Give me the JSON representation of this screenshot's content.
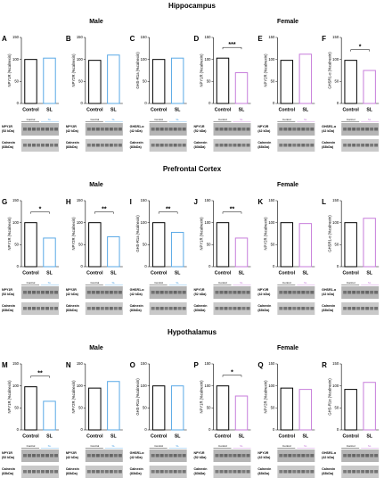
{
  "sections": [
    {
      "title": "Hippocampus",
      "groups": [
        "Male",
        "Female"
      ]
    },
    {
      "title": "Prefrontal Cortex",
      "groups": [
        "Male",
        "Female"
      ]
    },
    {
      "title": "Hypothalamus",
      "groups": [
        "Male",
        "Female"
      ]
    }
  ],
  "chart_data": [
    {
      "type": "bar",
      "label": "A",
      "ylabel": "NPY1R (%calnexin)",
      "categories": [
        "Control",
        "SL"
      ],
      "values": [
        100,
        103
      ],
      "colors": [
        "#000000",
        "#5aa9e6"
      ],
      "ylim": [
        0,
        150
      ],
      "yticks": [
        0,
        50,
        100,
        150
      ],
      "blots": [
        [
          "NPY1R",
          "(52 kDa)"
        ],
        [
          "Calnexin",
          "(83kDa)"
        ]
      ]
    },
    {
      "type": "bar",
      "label": "B",
      "ylabel": "NPY2R (%calnexin)",
      "categories": [
        "Control",
        "SL"
      ],
      "values": [
        98,
        110
      ],
      "colors": [
        "#000000",
        "#5aa9e6"
      ],
      "ylim": [
        0,
        150
      ],
      "yticks": [
        0,
        50,
        100,
        150
      ],
      "blots": [
        [
          "NPY2R",
          "(42 kDa)"
        ],
        [
          "Calnexin",
          "(83kDa)"
        ]
      ]
    },
    {
      "type": "bar",
      "label": "C",
      "ylabel": "GHS-R1a (%calnexin)",
      "categories": [
        "Control",
        "SL"
      ],
      "values": [
        100,
        103
      ],
      "colors": [
        "#000000",
        "#5aa9e6"
      ],
      "ylim": [
        0,
        150
      ],
      "yticks": [
        0,
        50,
        100,
        150
      ],
      "blots": [
        [
          "GHSR1-α",
          "(42 kDa)"
        ],
        [
          "Calnexin",
          "(83kDa)"
        ]
      ]
    },
    {
      "type": "bar",
      "label": "D",
      "ylabel": "NPY1R (%calnexin)",
      "categories": [
        "Control",
        "SL"
      ],
      "values": [
        103,
        70
      ],
      "colors": [
        "#000000",
        "#c77ddb"
      ],
      "ylim": [
        0,
        150
      ],
      "yticks": [
        0,
        50,
        100,
        150
      ],
      "annotation": "***",
      "blots": [
        [
          "NPY1R",
          "(52 kDa)"
        ],
        [
          "Calnexin",
          "(83kDa)"
        ]
      ]
    },
    {
      "type": "bar",
      "label": "E",
      "ylabel": "NPY2R (%calnexin)",
      "categories": [
        "Control",
        "SL"
      ],
      "values": [
        98,
        112
      ],
      "colors": [
        "#000000",
        "#c77ddb"
      ],
      "ylim": [
        0,
        150
      ],
      "yticks": [
        0,
        50,
        100,
        150
      ],
      "blots": [
        [
          "NPY2R",
          "(42 kDa)"
        ],
        [
          "Calnexin",
          "(83kDa)"
        ]
      ]
    },
    {
      "type": "bar",
      "label": "F",
      "ylabel": "GHSR1-α (%calnexin)",
      "categories": [
        "Control",
        "SL"
      ],
      "values": [
        98,
        75
      ],
      "colors": [
        "#000000",
        "#c77ddb"
      ],
      "ylim": [
        0,
        150
      ],
      "yticks": [
        0,
        50,
        100,
        150
      ],
      "annotation": "*",
      "blots": [
        [
          "GHSR1-α",
          "(42 kDa)"
        ],
        [
          "Calnexin",
          "(83kDa)"
        ]
      ]
    },
    {
      "type": "bar",
      "label": "G",
      "ylabel": "NPY1R (%calnexin)",
      "categories": [
        "Control",
        "SL"
      ],
      "values": [
        100,
        65
      ],
      "colors": [
        "#000000",
        "#5aa9e6"
      ],
      "ylim": [
        0,
        150
      ],
      "yticks": [
        0,
        50,
        100,
        150
      ],
      "annotation": "*",
      "blots": [
        [
          "NPY1R",
          "(52 kDa)"
        ],
        [
          "Calnexin",
          "(83kDa)"
        ]
      ]
    },
    {
      "type": "bar",
      "label": "H",
      "ylabel": "NPY2R (%calnexin)",
      "categories": [
        "Control",
        "SL"
      ],
      "values": [
        100,
        68
      ],
      "colors": [
        "#000000",
        "#5aa9e6"
      ],
      "ylim": [
        0,
        150
      ],
      "yticks": [
        0,
        50,
        100,
        150
      ],
      "annotation": "**",
      "blots": [
        [
          "NPY2R",
          "(42 kDa)"
        ],
        [
          "Calnexin",
          "(83kDa)"
        ]
      ]
    },
    {
      "type": "bar",
      "label": "I",
      "ylabel": "GHS-R1a (%calnexin)",
      "categories": [
        "Control",
        "SL"
      ],
      "values": [
        100,
        78
      ],
      "colors": [
        "#000000",
        "#5aa9e6"
      ],
      "ylim": [
        0,
        150
      ],
      "yticks": [
        0,
        50,
        100,
        150
      ],
      "annotation": "**",
      "blots": [
        [
          "GHSR1-α",
          "(42 kDa)"
        ],
        [
          "Calnexin",
          "(83kDa)"
        ]
      ]
    },
    {
      "type": "bar",
      "label": "J",
      "ylabel": "NPY1R (%calnexin)",
      "categories": [
        "Control",
        "SL"
      ],
      "values": [
        100,
        65
      ],
      "colors": [
        "#000000",
        "#c77ddb"
      ],
      "ylim": [
        0,
        150
      ],
      "yticks": [
        0,
        50,
        100,
        150
      ],
      "annotation": "**",
      "blots": [
        [
          "NPY1R",
          "(52 kDa)"
        ],
        [
          "Calnexin",
          "(83kDa)"
        ]
      ]
    },
    {
      "type": "bar",
      "label": "K",
      "ylabel": "NPY2R (%calnexin)",
      "categories": [
        "Control",
        "SL"
      ],
      "values": [
        100,
        98
      ],
      "colors": [
        "#000000",
        "#c77ddb"
      ],
      "ylim": [
        0,
        150
      ],
      "yticks": [
        0,
        50,
        100,
        150
      ],
      "blots": [
        [
          "NPY2R",
          "(42 kDa)"
        ],
        [
          "Calnexin",
          "(83kDa)"
        ]
      ]
    },
    {
      "type": "bar",
      "label": "L",
      "ylabel": "GHSR1-α (%calnexin)",
      "categories": [
        "Control",
        "SL"
      ],
      "values": [
        100,
        110
      ],
      "colors": [
        "#000000",
        "#c77ddb"
      ],
      "ylim": [
        0,
        150
      ],
      "yticks": [
        0,
        50,
        100,
        150
      ],
      "blots": [
        [
          "GHSR1-α",
          "(42 kDa)"
        ],
        [
          "Calnexin",
          "(83kDa)"
        ]
      ]
    },
    {
      "type": "bar",
      "label": "M",
      "ylabel": "NPY1R (%calnexin)",
      "categories": [
        "Control",
        "SL"
      ],
      "values": [
        98,
        65
      ],
      "colors": [
        "#000000",
        "#5aa9e6"
      ],
      "ylim": [
        0,
        150
      ],
      "yticks": [
        0,
        50,
        100,
        150
      ],
      "annotation": "**",
      "blots": [
        [
          "NPY1R",
          "(52 kDa)"
        ],
        [
          "Calnexin",
          "(83kDa)"
        ]
      ]
    },
    {
      "type": "bar",
      "label": "N",
      "ylabel": "NPY2R (%calnexin)",
      "categories": [
        "Control",
        "SL"
      ],
      "values": [
        95,
        110
      ],
      "colors": [
        "#000000",
        "#5aa9e6"
      ],
      "ylim": [
        0,
        150
      ],
      "yticks": [
        0,
        50,
        100,
        150
      ],
      "blots": [
        [
          "NPY2R",
          "(42 kDa)"
        ],
        [
          "Calnexin",
          "(83kDa)"
        ]
      ]
    },
    {
      "type": "bar",
      "label": "O",
      "ylabel": "GHS-R1a (%calnexin)",
      "categories": [
        "Control",
        "SL"
      ],
      "values": [
        100,
        100
      ],
      "colors": [
        "#000000",
        "#5aa9e6"
      ],
      "ylim": [
        0,
        150
      ],
      "yticks": [
        0,
        50,
        100,
        150
      ],
      "blots": [
        [
          "GHSR1-α",
          "(42 kDa)"
        ],
        [
          "Calnexin",
          "(83kDa)"
        ]
      ]
    },
    {
      "type": "bar",
      "label": "P",
      "ylabel": "NPY1R (%calnexin)",
      "categories": [
        "Control",
        "SL"
      ],
      "values": [
        100,
        77
      ],
      "colors": [
        "#000000",
        "#c77ddb"
      ],
      "ylim": [
        0,
        150
      ],
      "yticks": [
        0,
        50,
        100,
        150
      ],
      "annotation": "*",
      "blots": [
        [
          "NPY1R",
          "(52 kDa)"
        ],
        [
          "Calnexin",
          "(83kDa)"
        ]
      ]
    },
    {
      "type": "bar",
      "label": "Q",
      "ylabel": "NPY2R (%calnexin)",
      "categories": [
        "Control",
        "SL"
      ],
      "values": [
        95,
        92
      ],
      "colors": [
        "#000000",
        "#c77ddb"
      ],
      "ylim": [
        0,
        150
      ],
      "yticks": [
        0,
        50,
        100,
        150
      ],
      "blots": [
        [
          "NPY2R",
          "(42 kDa)"
        ],
        [
          "Calnexin",
          "(83kDa)"
        ]
      ]
    },
    {
      "type": "bar",
      "label": "R",
      "ylabel": "GHS-R1α (%calnexin)",
      "categories": [
        "Control",
        "SL"
      ],
      "values": [
        92,
        108
      ],
      "colors": [
        "#000000",
        "#c77ddb"
      ],
      "ylim": [
        0,
        150
      ],
      "yticks": [
        0,
        50,
        100,
        150
      ],
      "blots": [
        [
          "GHSR1-α",
          "(42 kDa)"
        ],
        [
          "Calnexin",
          "(83kDa)"
        ]
      ]
    }
  ]
}
